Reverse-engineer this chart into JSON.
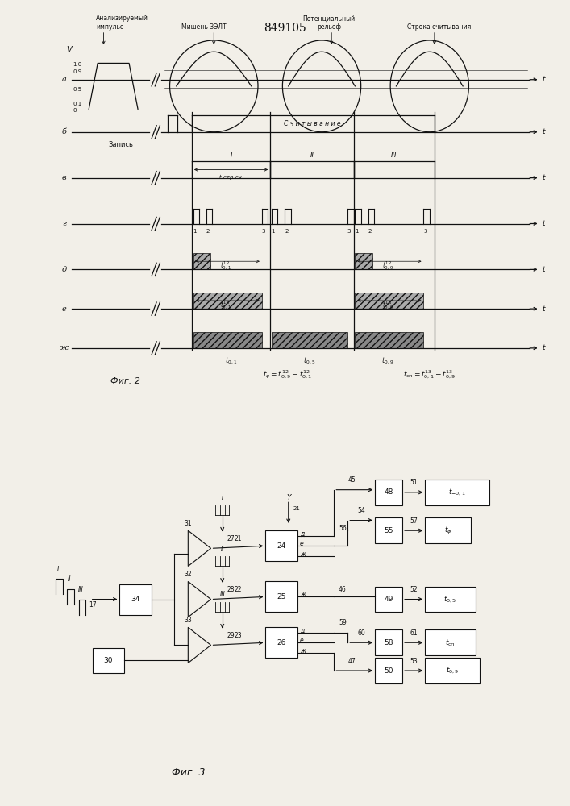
{
  "title": "849105",
  "bg_color": "#f2efe8",
  "line_color": "#111111",
  "row_labels_fig2": [
    "а",
    "б",
    "в",
    "г",
    "д",
    "е",
    "ж"
  ],
  "fig2_caption": "Фиг. 2",
  "fig3_caption": "Фиг. 3",
  "label_a": "Анализируемый\nимпульс",
  "label_b": "Мишень ЗЭЛТ",
  "label_c": "Потенциальный\nрельеф",
  "label_d": "Строка считывания",
  "zapis": "Запись",
  "schit": "С ч и т ы в а н и е",
  "t_str": "t стр.сч.",
  "formula1": "$t_{\\phi}=t_{0,9}^{12}-t_{0,1}^{12}$",
  "formula2": "$t_{\\text{\\cyrс\\cyrp}}=t_{0,1}^{13}-t_{0,9}^{13}$"
}
